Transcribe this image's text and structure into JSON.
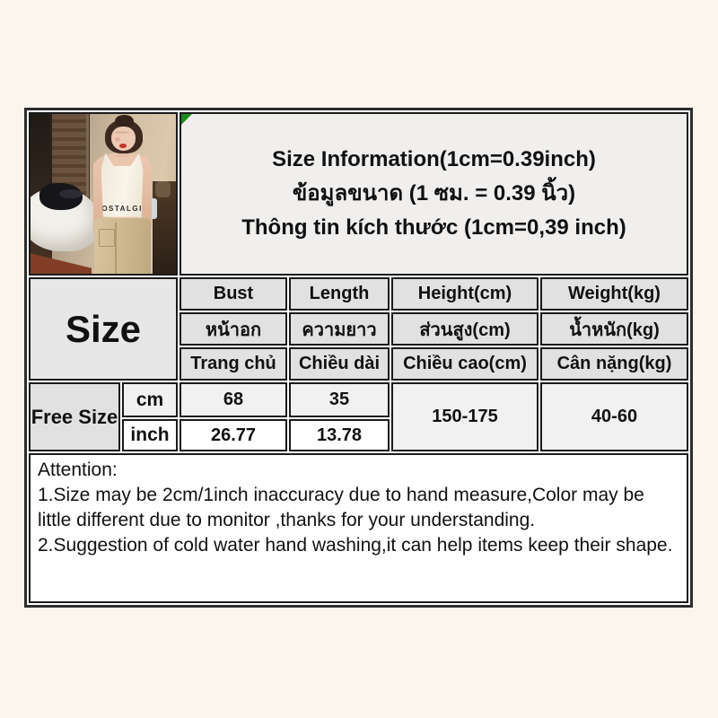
{
  "title": {
    "line_en": "Size Information(1cm=0.39inch)",
    "line_th": "ข้อมูลขนาด (1 ซม. = 0.39 นิ้ว)",
    "line_vi": "Thông tin kích thước (1cm=0,39 inch)"
  },
  "photo": {
    "shirt_text": "NOSTALGIA"
  },
  "size_table": {
    "corner_label": "Size",
    "columns": [
      {
        "en": "Bust",
        "th": "หน้าอก",
        "vi": "Trang chủ"
      },
      {
        "en": "Length",
        "th": "ความยาว",
        "vi": "Chiều dài"
      },
      {
        "en": "Height(cm)",
        "th": "ส่วนสูง(cm)",
        "vi": "Chiều cao(cm)"
      },
      {
        "en": "Weight(kg)",
        "th": "น้ำหนัก(kg)",
        "vi": "Cân nặng(kg)"
      }
    ],
    "row_label": "Free Size",
    "units": {
      "metric": "cm",
      "imperial": "inch"
    },
    "values": {
      "bust_cm": "68",
      "length_cm": "35",
      "bust_inch": "26.77",
      "length_inch": "13.78",
      "height_range": "150-175",
      "weight_range": "40-60"
    }
  },
  "attention": {
    "heading": "Attention:",
    "line1": "1.Size may be 2cm/1inch inaccuracy due to hand measure,Color may be little different due to monitor ,thanks for your understanding.",
    "line2": "2.Suggestion of cold water hand washing,it can help items keep their shape."
  },
  "colors": {
    "page_bg": "#fcf5ee",
    "cell_border": "#1b1b1b",
    "header_gray": "#e1e1e1",
    "title_bg": "#f0efee",
    "marker_green": "#1d8a1d"
  }
}
